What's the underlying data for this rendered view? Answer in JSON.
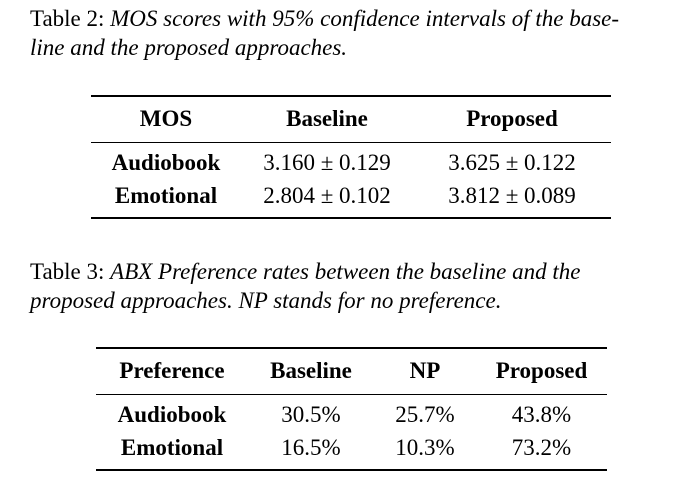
{
  "table2": {
    "caption_label": "Table 2:",
    "caption_text": "MOS scores with 95% confidence intervals of the base-line and the proposed approaches.",
    "caption_line1": "MOS scores with 95% confidence intervals of the base-",
    "caption_line2": "line and the proposed approaches.",
    "headers": [
      "MOS",
      "Baseline",
      "Proposed"
    ],
    "rows": [
      [
        "Audiobook",
        "3.160 ± 0.129",
        "3.625 ± 0.122"
      ],
      [
        "Emotional",
        "2.804 ± 0.102",
        "3.812 ± 0.089"
      ]
    ]
  },
  "table3": {
    "caption_label": "Table 3:",
    "caption_line1": "ABX Preference rates between the baseline and the",
    "caption_line2": "proposed approaches. NP stands for no preference.",
    "headers": [
      "Preference",
      "Baseline",
      "NP",
      "Proposed"
    ],
    "rows": [
      [
        "Audiobook",
        "30.5%",
        "25.7%",
        "43.8%"
      ],
      [
        "Emotional",
        "16.5%",
        "10.3%",
        "73.2%"
      ]
    ]
  }
}
